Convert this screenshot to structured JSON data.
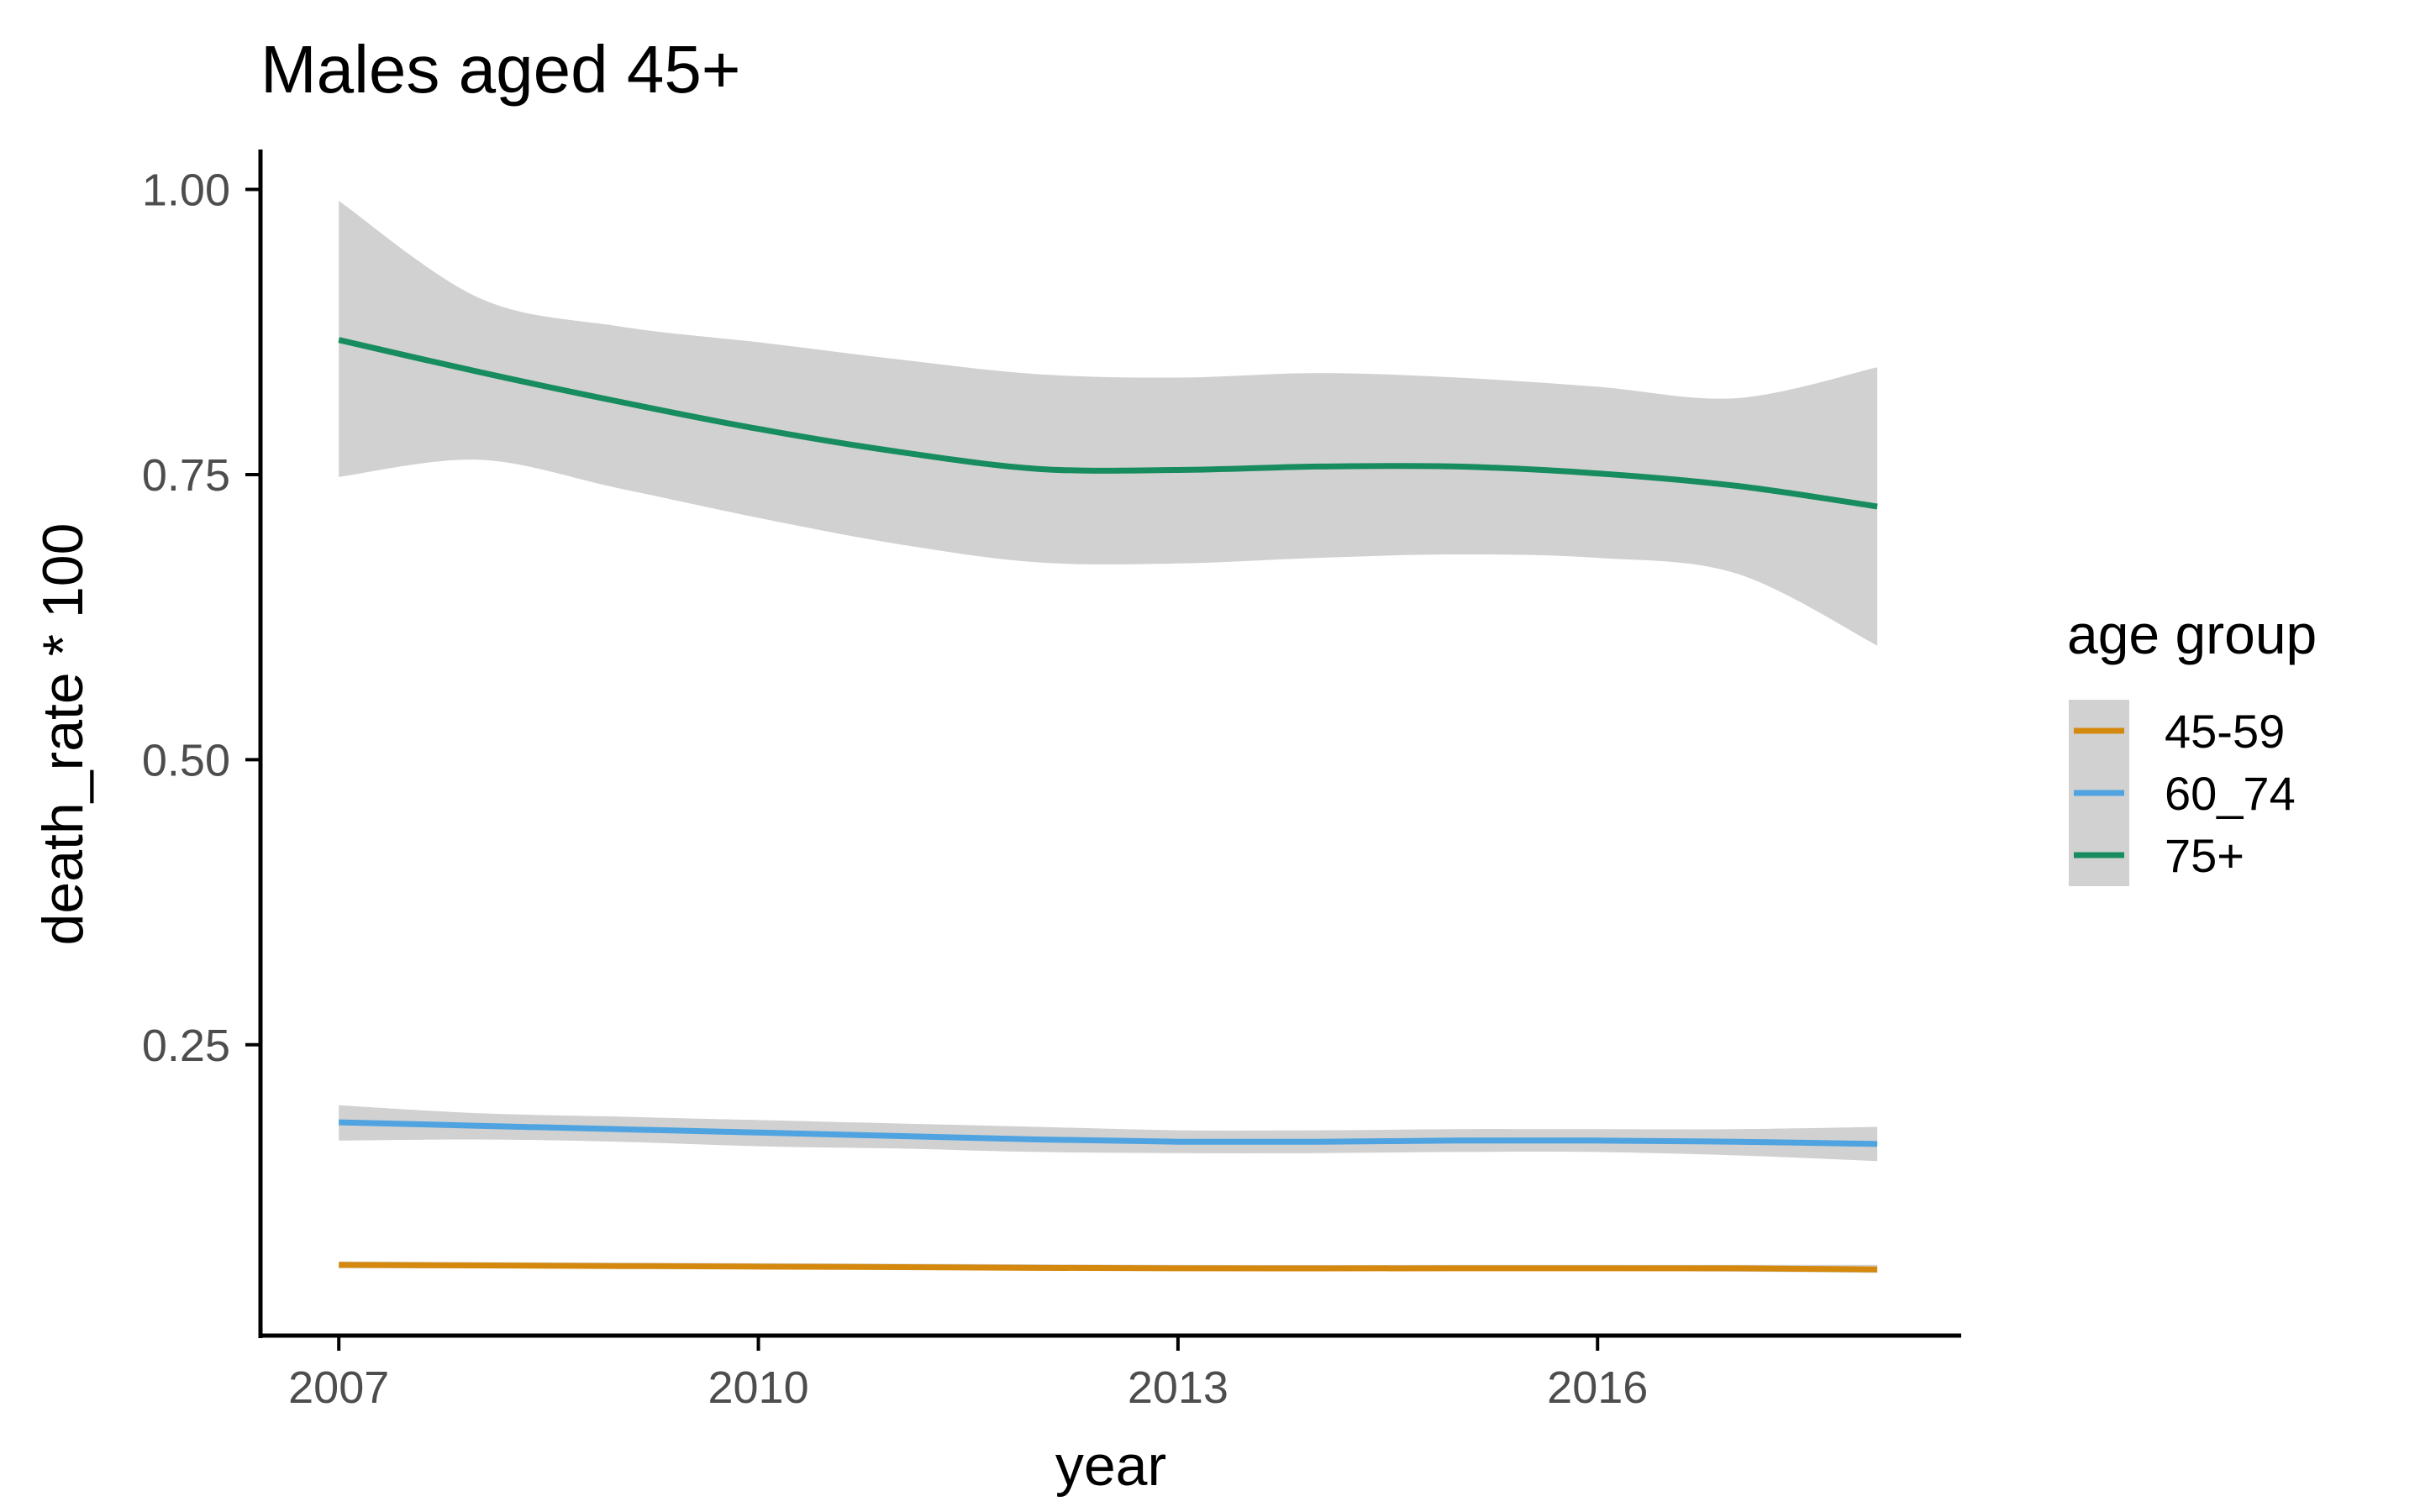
{
  "chart_data": {
    "type": "line",
    "title": "Males aged 45+",
    "xlabel": "year",
    "ylabel": "death_rate * 100",
    "xlim": [
      2006.44,
      2018.6
    ],
    "ylim": [
      -0.005,
      1.035
    ],
    "x_ticks": [
      2007,
      2010,
      2013,
      2016
    ],
    "y_ticks": [
      0.25,
      0.5,
      0.75,
      1.0
    ],
    "y_tick_labels": [
      "0.25",
      "0.50",
      "0.75",
      "1.00"
    ],
    "grid": false,
    "legend": {
      "title": "age group",
      "position": "right"
    },
    "series": [
      {
        "name": "45-59",
        "color": "#D4890E",
        "x": [
          2007,
          2009,
          2011,
          2013,
          2015,
          2017,
          2018
        ],
        "y": [
          0.057,
          0.056,
          0.055,
          0.054,
          0.054,
          0.054,
          0.053
        ],
        "lower": [
          0.054,
          0.054,
          0.053,
          0.052,
          0.052,
          0.051,
          0.05
        ],
        "upper": [
          0.06,
          0.059,
          0.058,
          0.057,
          0.057,
          0.057,
          0.057
        ]
      },
      {
        "name": "60_74",
        "color": "#4EA3E0",
        "x": [
          2007,
          2008,
          2009,
          2010,
          2011,
          2012,
          2013,
          2014,
          2015,
          2016,
          2017,
          2018
        ],
        "y": [
          0.182,
          0.179,
          0.176,
          0.173,
          0.17,
          0.167,
          0.165,
          0.165,
          0.166,
          0.166,
          0.165,
          0.163
        ],
        "lower": [
          0.166,
          0.167,
          0.165,
          0.161,
          0.159,
          0.156,
          0.155,
          0.155,
          0.156,
          0.156,
          0.153,
          0.148
        ],
        "upper": [
          0.197,
          0.19,
          0.187,
          0.184,
          0.181,
          0.178,
          0.175,
          0.175,
          0.176,
          0.176,
          0.176,
          0.178
        ]
      },
      {
        "name": "75+",
        "color": "#178C5E",
        "x": [
          2007,
          2008,
          2009,
          2010,
          2011,
          2012,
          2013,
          2014,
          2015,
          2016,
          2017,
          2018
        ],
        "y": [
          0.868,
          0.84,
          0.814,
          0.79,
          0.77,
          0.755,
          0.754,
          0.757,
          0.757,
          0.751,
          0.74,
          0.722
        ],
        "lower": [
          0.748,
          0.763,
          0.738,
          0.712,
          0.689,
          0.673,
          0.672,
          0.677,
          0.68,
          0.677,
          0.663,
          0.6
        ],
        "upper": [
          0.99,
          0.905,
          0.88,
          0.866,
          0.851,
          0.838,
          0.835,
          0.839,
          0.835,
          0.827,
          0.817,
          0.844
        ]
      }
    ]
  }
}
